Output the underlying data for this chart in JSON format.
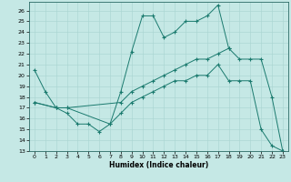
{
  "xlabel": "Humidex (Indice chaleur)",
  "background_color": "#c5e8e5",
  "line_color": "#1a7a6e",
  "xlim": [
    -0.5,
    23.5
  ],
  "ylim": [
    13,
    26.8
  ],
  "xticks": [
    0,
    1,
    2,
    3,
    4,
    5,
    6,
    7,
    8,
    9,
    10,
    11,
    12,
    13,
    14,
    15,
    16,
    17,
    18,
    19,
    20,
    21,
    22,
    23
  ],
  "yticks": [
    13,
    14,
    15,
    16,
    17,
    18,
    19,
    20,
    21,
    22,
    23,
    24,
    25,
    26
  ],
  "series": [
    {
      "x": [
        0,
        1,
        2,
        3,
        4,
        5,
        6,
        7,
        8,
        9,
        10,
        11,
        12,
        13,
        14,
        15,
        16,
        17,
        18
      ],
      "y": [
        20.5,
        18.5,
        17.0,
        16.5,
        15.5,
        15.5,
        14.8,
        15.5,
        18.5,
        22.2,
        25.5,
        25.5,
        23.5,
        24.0,
        25.0,
        25.0,
        25.5,
        26.5,
        22.5
      ]
    },
    {
      "x": [
        0,
        2,
        3,
        8,
        9,
        10,
        11,
        12,
        13,
        14,
        15,
        16,
        17,
        18,
        19,
        20,
        21,
        22,
        23
      ],
      "y": [
        17.5,
        17.0,
        17.0,
        17.5,
        18.5,
        19.0,
        19.5,
        20.0,
        20.5,
        21.0,
        21.5,
        21.5,
        22.0,
        22.5,
        21.5,
        21.5,
        21.5,
        18.0,
        13.0
      ]
    },
    {
      "x": [
        0,
        2,
        3,
        7,
        8,
        9,
        10,
        11,
        12,
        13,
        14,
        15,
        16,
        17,
        18,
        19,
        20,
        21,
        22,
        23
      ],
      "y": [
        17.5,
        17.0,
        17.0,
        15.5,
        16.5,
        17.5,
        18.0,
        18.5,
        19.0,
        19.5,
        19.5,
        20.0,
        20.0,
        21.0,
        19.5,
        19.5,
        19.5,
        15.0,
        13.5,
        13.0
      ]
    }
  ]
}
